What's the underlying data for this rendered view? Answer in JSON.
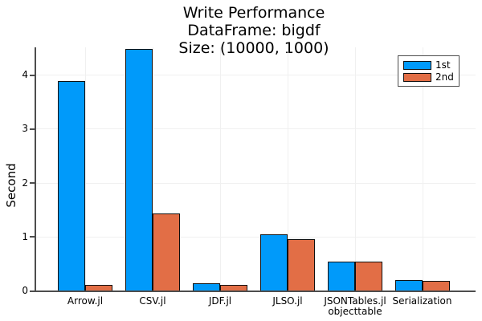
{
  "chart_data": {
    "type": "bar",
    "title_lines": [
      "Write Performance",
      "DataFrame: bigdf",
      "Size: (10000, 1000)"
    ],
    "ylabel": "Second",
    "xlabel": "",
    "categories": [
      [
        "Arrow.jl"
      ],
      [
        "CSV.jl"
      ],
      [
        "JDF.jl"
      ],
      [
        "JLSO.jl"
      ],
      [
        "JSONTables.jl",
        "objecttable"
      ],
      [
        "Serialization"
      ]
    ],
    "series": [
      {
        "name": "1st",
        "color": "#009AFA",
        "values": [
          3.88,
          4.48,
          0.14,
          1.04,
          0.53,
          0.19
        ]
      },
      {
        "name": "2nd",
        "color": "#E26E46",
        "values": [
          0.1,
          1.43,
          0.1,
          0.95,
          0.53,
          0.18
        ]
      }
    ],
    "yticks": [
      0,
      1,
      2,
      3,
      4
    ],
    "ylim": [
      0,
      4.51
    ],
    "grid": true,
    "legend_position": "top-right"
  },
  "colors": {
    "series_1st": "#009AFA",
    "series_2nd": "#E26E46",
    "bar_border": "#101010",
    "grid": "#F0F0F0",
    "axis": "#4D4D4D",
    "text": "#000000",
    "background": "#FFFFFF"
  }
}
